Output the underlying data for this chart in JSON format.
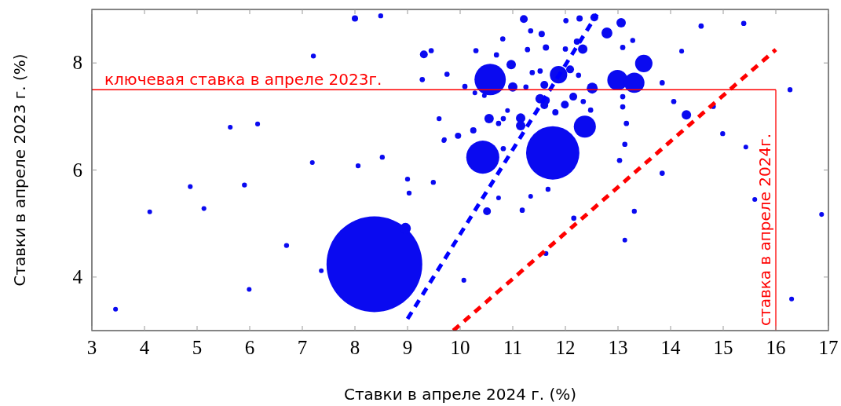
{
  "chart_data": {
    "type": "bubble",
    "xlabel": "Ставки в апреле 2024 г. (%)",
    "ylabel": "Ставки в апреле 2023 г. (%)",
    "xlim": [
      3,
      17
    ],
    "ylim": [
      3,
      9
    ],
    "xticks": [
      3,
      4,
      5,
      6,
      7,
      8,
      9,
      10,
      11,
      12,
      13,
      14,
      15,
      16,
      17
    ],
    "yticks": [
      4,
      6,
      8
    ],
    "grid": false,
    "ref_lines": [
      {
        "axis": "y",
        "value": 7.5,
        "label": "ключевая ставка в апреле 2023г.",
        "color": "#ff0000"
      },
      {
        "axis": "x",
        "value": 16,
        "label": "ставка в апреле 2024г.",
        "color": "#ff0000"
      }
    ],
    "series": [
      {
        "type": "bubble",
        "color": "#0a0af0",
        "x": [
          8.37,
          11.76,
          10.57,
          10.43,
          12.37,
          12.99,
          13.31,
          13.49,
          11.87,
          8.96,
          10.97,
          11.0,
          12.51,
          12.79,
          13.06,
          11.21,
          12.55,
          12.27,
          11.55,
          11.63,
          12.33,
          12.22,
          12.09,
          10.55,
          11.15,
          11.15,
          11.6,
          11.52,
          11.63,
          11.6,
          11.99,
          12.15,
          11.81,
          10.25,
          9.96,
          9.7,
          10.28,
          10.46,
          10.9,
          13.09,
          13.09,
          13.84,
          14.3,
          12.01,
          10.81,
          11.34,
          11.28,
          12.0,
          13.09,
          13.28,
          10.69,
          10.3,
          10.09,
          9.75,
          11.25,
          11.52,
          11.37,
          12.25,
          13.13,
          13.16,
          12.34,
          12.48,
          14.06,
          10.73,
          10.82,
          10.51,
          10.73,
          11.34,
          11.18,
          13.13,
          13.03,
          13.84,
          13.31,
          12.16,
          11.63,
          10.07,
          11.67,
          10.82,
          8.0,
          8.49,
          9.31,
          9.45,
          7.21,
          9.28,
          9.6,
          9.69,
          8.52,
          8.06,
          7.19,
          9.0,
          9.03,
          9.49,
          4.87,
          5.9,
          5.63,
          6.15,
          5.13,
          4.1,
          6.7,
          7.36,
          5.99,
          3.45,
          14.58,
          15.39,
          14.21,
          16.27,
          14.81,
          14.99,
          15.43,
          15.6,
          16.87,
          16.3
        ],
        "values": [
          4.24,
          6.32,
          7.69,
          6.24,
          6.81,
          7.68,
          7.63,
          7.99,
          7.78,
          4.91,
          7.97,
          7.55,
          7.53,
          8.56,
          8.75,
          8.82,
          8.85,
          8.83,
          8.54,
          8.29,
          8.26,
          8.4,
          7.88,
          6.96,
          6.97,
          6.83,
          7.59,
          7.33,
          7.3,
          7.21,
          7.22,
          7.37,
          7.08,
          6.74,
          6.64,
          6.57,
          7.44,
          7.39,
          7.11,
          7.37,
          7.18,
          7.63,
          7.03,
          8.79,
          8.45,
          8.6,
          8.25,
          8.26,
          8.29,
          8.42,
          8.15,
          8.23,
          7.56,
          7.79,
          7.55,
          7.85,
          7.82,
          7.77,
          6.48,
          6.87,
          7.28,
          7.12,
          7.28,
          6.87,
          6.96,
          5.23,
          5.48,
          5.51,
          5.25,
          4.69,
          6.18,
          5.94,
          5.23,
          5.1,
          4.44,
          3.94,
          5.64,
          6.4,
          8.83,
          8.88,
          8.16,
          8.23,
          8.13,
          7.69,
          6.96,
          6.55,
          6.24,
          6.08,
          6.14,
          5.83,
          5.57,
          5.77,
          5.69,
          5.72,
          6.8,
          6.86,
          5.28,
          5.22,
          4.59,
          4.12,
          3.77,
          3.4,
          8.69,
          8.74,
          8.22,
          7.5,
          7.19,
          6.68,
          6.43,
          5.45,
          5.17,
          3.59
        ],
        "sizes": [
          1,
          0.31,
          0.107,
          0.119,
          0.053,
          0.045,
          0.045,
          0.033,
          0.033,
          0.013,
          0.0097,
          0.0097,
          0.013,
          0.013,
          0.0097,
          0.0067,
          0.0067,
          0.0043,
          0.0043,
          0.0043,
          0.0097,
          0.0043,
          0.0067,
          0.0097,
          0.0097,
          0.0097,
          0.0067,
          0.0097,
          0.0067,
          0.0067,
          0.0067,
          0.0067,
          0.0043,
          0.0043,
          0.0043,
          0.0024,
          0.0024,
          0.0024,
          0.0024,
          0.003,
          0.003,
          0.003,
          0.0097,
          0.003,
          0.003,
          0.003,
          0.003,
          0.003,
          0.003,
          0.0027,
          0.003,
          0.003,
          0.003,
          0.003,
          0.003,
          0.003,
          0.003,
          0.003,
          0.003,
          0.003,
          0.003,
          0.003,
          0.003,
          0.003,
          0.003,
          0.0067,
          0.0024,
          0.0024,
          0.003,
          0.0024,
          0.003,
          0.003,
          0.0027,
          0.003,
          0.0027,
          0.0025,
          0.0027,
          0.003,
          0.0043,
          0.0027,
          0.0067,
          0.003,
          0.0027,
          0.003,
          0.0027,
          0.0024,
          0.0027,
          0.0027,
          0.0025,
          0.0027,
          0.0027,
          0.0027,
          0.0025,
          0.0027,
          0.0025,
          0.0025,
          0.0025,
          0.0024,
          0.0027,
          0.0024,
          0.0024,
          0.0025,
          0.003,
          0.003,
          0.0025,
          0.0027,
          0.003,
          0.0027,
          0.0024,
          0.0025,
          0.0025,
          0.0025
        ]
      },
      {
        "type": "line",
        "color": "#0000ff",
        "line_style": "dashed",
        "marker": "none",
        "x": [
          9.0,
          12.6
        ],
        "values": [
          3.22,
          8.91
        ]
      },
      {
        "type": "line",
        "color": "#ff0000",
        "line_style": "dashed",
        "marker": "none",
        "x": [
          9.87,
          16.0
        ],
        "values": [
          3.0,
          8.25
        ]
      }
    ]
  }
}
